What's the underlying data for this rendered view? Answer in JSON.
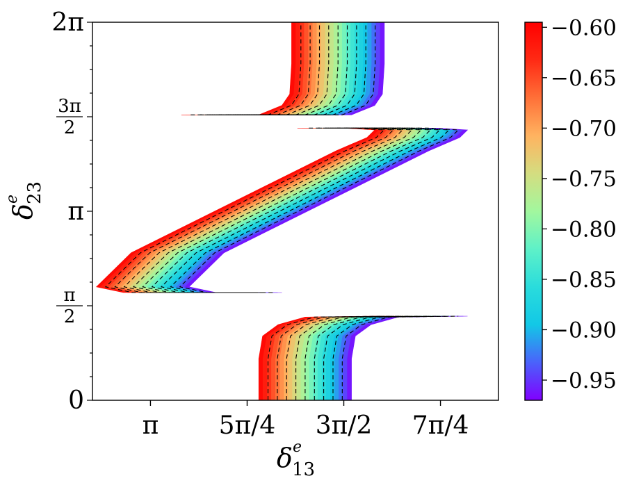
{
  "chart_data": {
    "type": "heatmap",
    "xlabel": "δ",
    "xlabel_sup": "e",
    "xlabel_sub": "13",
    "ylabel": "δ",
    "ylabel_sup": "e",
    "ylabel_sub": "23",
    "xlim": [
      0.85,
      1.9
    ],
    "ylim": [
      0,
      2
    ],
    "x_unit": "π",
    "y_unit": "π",
    "x_ticks": [
      {
        "value": 1.0,
        "label": "π"
      },
      {
        "value": 1.25,
        "label": "5π/4"
      },
      {
        "value": 1.5,
        "label": "3π/2"
      },
      {
        "value": 1.75,
        "label": "7π/4"
      }
    ],
    "y_ticks": [
      {
        "value": 0,
        "label": "0"
      },
      {
        "value": 0.5,
        "label_num": "π",
        "label_den": "2"
      },
      {
        "value": 1.0,
        "label": "π"
      },
      {
        "value": 1.5,
        "label_num": "3π",
        "label_den": "2"
      },
      {
        "value": 2.0,
        "label": "2π"
      }
    ],
    "y_minor_step": 0.125,
    "colorbar": {
      "colormap": "rainbow",
      "min": -0.97,
      "max": -0.595,
      "ticks": [
        "−0.60",
        "−0.65",
        "−0.70",
        "−0.75",
        "−0.80",
        "−0.85",
        "−0.90",
        "−0.95"
      ],
      "tick_values": [
        -0.6,
        -0.65,
        -0.7,
        -0.75,
        -0.8,
        -0.85,
        -0.9,
        -0.95
      ],
      "colors": [
        "#8000ff",
        "#4a62fb",
        "#12c8e6",
        "#2adcdc",
        "#5ef1c8",
        "#a2f79e",
        "#d4dd80",
        "#ffb360",
        "#ff7038",
        "#ff2a14",
        "#ff0000"
      ]
    },
    "contours": {
      "style": "dashed",
      "color": "#000000",
      "levels_per_band": 10
    },
    "regions": [
      {
        "name": "top",
        "center_curve": [
          [
            1.2,
            1.51
          ],
          [
            1.4,
            1.51
          ],
          [
            1.46,
            1.56
          ],
          [
            1.48,
            1.62
          ],
          [
            1.485,
            1.78
          ],
          [
            1.485,
            2.0
          ]
        ],
        "width_x": 0.24
      },
      {
        "name": "middle",
        "center_curve": [
          [
            1.22,
            0.57
          ],
          [
            1.05,
            0.57
          ],
          [
            0.98,
            0.6
          ],
          [
            1.07,
            0.78
          ],
          [
            1.6,
            1.32
          ],
          [
            1.68,
            1.39
          ],
          [
            1.7,
            1.43
          ],
          [
            1.62,
            1.44
          ],
          [
            1.5,
            1.44
          ]
        ],
        "width_x": 0.24
      },
      {
        "name": "bottom",
        "center_curve": [
          [
            1.4,
            0.0
          ],
          [
            1.4,
            0.22
          ],
          [
            1.41,
            0.34
          ],
          [
            1.45,
            0.4
          ],
          [
            1.52,
            0.44
          ],
          [
            1.7,
            0.445
          ]
        ],
        "width_x": 0.24
      }
    ]
  }
}
